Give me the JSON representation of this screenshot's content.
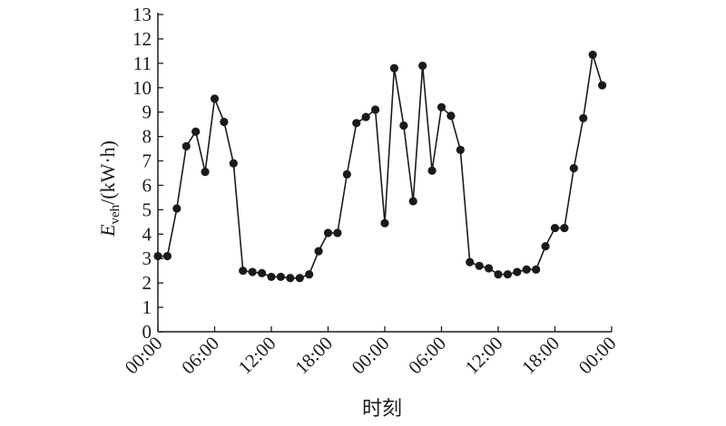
{
  "chart_data": {
    "type": "line",
    "xlabel": "时刻",
    "ylabel": {
      "symbol": "E",
      "subscript": "veh",
      "unit": "/(kW·h)"
    },
    "ylim": [
      0,
      13
    ],
    "yticks": [
      0,
      1,
      2,
      3,
      4,
      5,
      6,
      7,
      8,
      9,
      10,
      11,
      12,
      13
    ],
    "xlim": [
      0,
      48
    ],
    "xticks": [
      {
        "value": 0,
        "label": "00:00"
      },
      {
        "value": 6,
        "label": "06:00"
      },
      {
        "value": 12,
        "label": "12:00"
      },
      {
        "value": 18,
        "label": "18:00"
      },
      {
        "value": 24,
        "label": "00:00"
      },
      {
        "value": 30,
        "label": "06:00"
      },
      {
        "value": 36,
        "label": "12:00"
      },
      {
        "value": 42,
        "label": "18:00"
      },
      {
        "value": 48,
        "label": "00:00"
      }
    ],
    "grid": false,
    "series": [
      {
        "color": "#1a1a1a",
        "marker": "circle",
        "points": [
          [
            0,
            3.1
          ],
          [
            1,
            3.1
          ],
          [
            2,
            5.05
          ],
          [
            3,
            7.6
          ],
          [
            4,
            8.2
          ],
          [
            5,
            6.55
          ],
          [
            6,
            9.55
          ],
          [
            7,
            8.6
          ],
          [
            8,
            6.9
          ],
          [
            9,
            2.5
          ],
          [
            10,
            2.45
          ],
          [
            11,
            2.4
          ],
          [
            12,
            2.25
          ],
          [
            13,
            2.25
          ],
          [
            14,
            2.2
          ],
          [
            15,
            2.2
          ],
          [
            16,
            2.35
          ],
          [
            17,
            3.3
          ],
          [
            18,
            4.05
          ],
          [
            19,
            4.05
          ],
          [
            20,
            6.45
          ],
          [
            21,
            8.55
          ],
          [
            22,
            8.8
          ],
          [
            23,
            9.1
          ],
          [
            24,
            4.45
          ],
          [
            25,
            10.8
          ],
          [
            26,
            8.45
          ],
          [
            27,
            5.35
          ],
          [
            28,
            10.9
          ],
          [
            29,
            6.6
          ],
          [
            30,
            9.2
          ],
          [
            31,
            8.85
          ],
          [
            32,
            7.45
          ],
          [
            33,
            2.85
          ],
          [
            34,
            2.7
          ],
          [
            35,
            2.6
          ],
          [
            36,
            2.35
          ],
          [
            37,
            2.35
          ],
          [
            38,
            2.45
          ],
          [
            39,
            2.55
          ],
          [
            40,
            2.55
          ],
          [
            41,
            3.5
          ],
          [
            42,
            4.25
          ],
          [
            43,
            4.25
          ],
          [
            44,
            6.7
          ],
          [
            45,
            8.75
          ],
          [
            46,
            11.35
          ],
          [
            47,
            10.1
          ]
        ]
      }
    ]
  }
}
